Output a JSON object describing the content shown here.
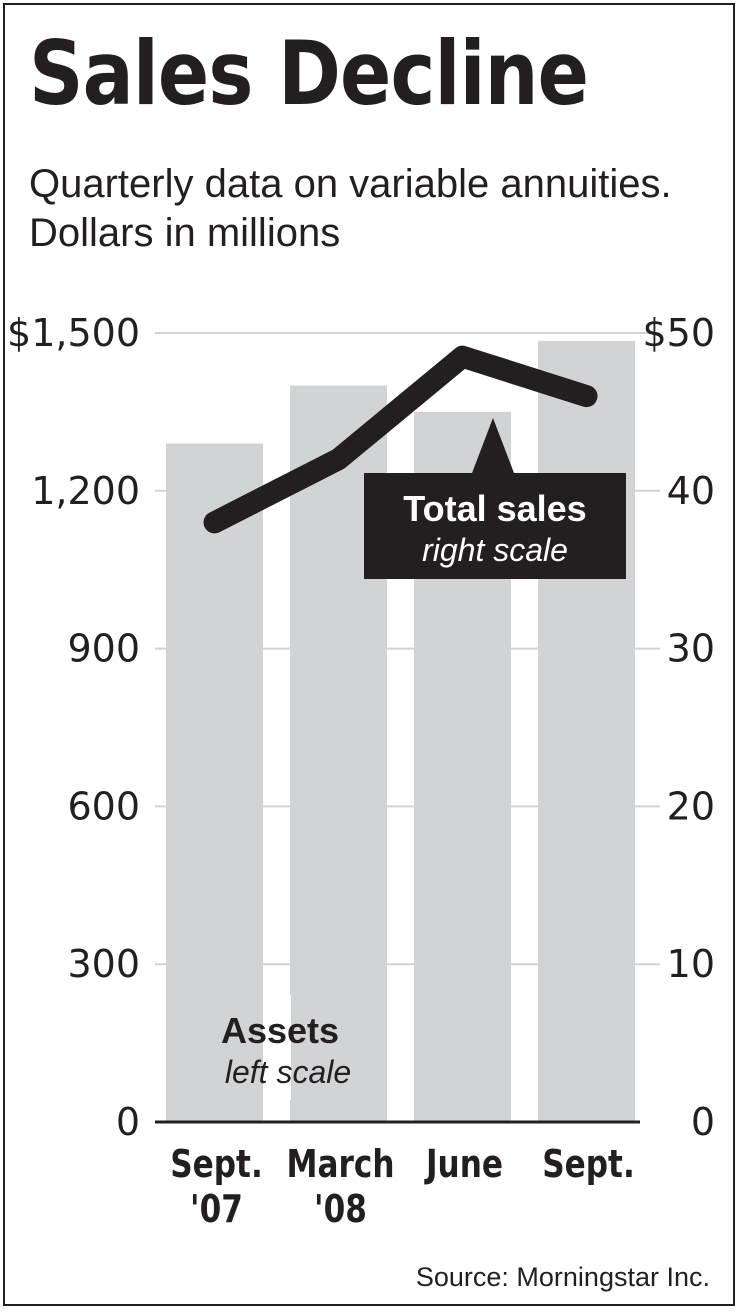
{
  "chart_data": {
    "type": "bar",
    "title": "Sales Decline",
    "subtitle": "Quarterly data on variable annuities. Dollars in millions",
    "categories": [
      [
        "Sept.",
        "'07"
      ],
      [
        "March",
        "'08"
      ],
      [
        "June",
        ""
      ],
      [
        "Sept.",
        ""
      ]
    ],
    "series": [
      {
        "name": "Assets",
        "note": "left scale",
        "kind": "bar",
        "axis": "left",
        "values": [
          1290,
          1400,
          1350,
          1485
        ]
      },
      {
        "name": "Total sales",
        "note": "right scale",
        "kind": "line",
        "axis": "right",
        "values": [
          38,
          42,
          48.5,
          46
        ]
      }
    ],
    "left_axis": {
      "range": [
        0,
        1500
      ],
      "ticks": [
        {
          "value": 0,
          "label": "0"
        },
        {
          "value": 300,
          "label": "300"
        },
        {
          "value": 600,
          "label": "600"
        },
        {
          "value": 900,
          "label": "900"
        },
        {
          "value": 1200,
          "label": "1,200"
        },
        {
          "value": 1500,
          "label": "$1,500"
        }
      ]
    },
    "right_axis": {
      "range": [
        0,
        50
      ],
      "ticks": [
        {
          "value": 0,
          "label": "0"
        },
        {
          "value": 10,
          "label": "10"
        },
        {
          "value": 20,
          "label": "20"
        },
        {
          "value": 30,
          "label": "30"
        },
        {
          "value": 40,
          "label": "40"
        },
        {
          "value": 50,
          "label": "$50"
        }
      ]
    },
    "grid": true,
    "colors": {
      "bar": "#d2d3d5",
      "line": "#231f20",
      "grid": "#d2d3d5",
      "callout_bg": "#231f20",
      "callout_text": "#ffffff"
    },
    "source": "Source: Morningstar Inc."
  }
}
